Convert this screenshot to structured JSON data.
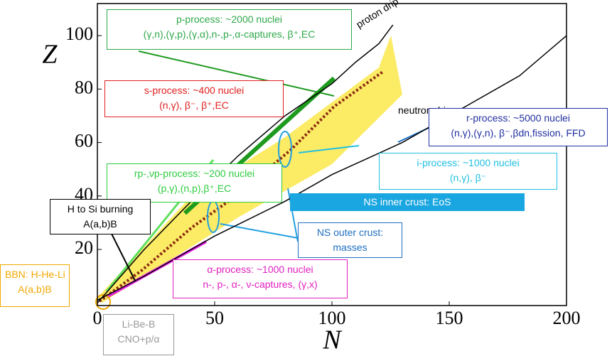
{
  "chart_data": {
    "type": "line",
    "x_label": "N",
    "y_label": "Z",
    "xlim": [
      0,
      200
    ],
    "ylim": [
      -1,
      112
    ],
    "xticks": [
      0,
      50,
      100,
      150,
      200
    ],
    "yticks": [
      20,
      40,
      60,
      80,
      100
    ],
    "series": [
      {
        "name": "proton drip",
        "color": "#000000",
        "x": [
          0,
          10,
          20,
          40,
          60,
          80,
          100,
          110,
          120,
          126
        ],
        "y": [
          0,
          10,
          20,
          38,
          55,
          70,
          82,
          90,
          97,
          104
        ]
      },
      {
        "name": "neutron drip",
        "color": "#000000",
        "x": [
          0,
          20,
          50,
          80,
          100,
          130,
          160,
          180,
          200
        ],
        "y": [
          1,
          10,
          25,
          38,
          48,
          60,
          75,
          85,
          100
        ]
      }
    ],
    "annotations": [
      {
        "lines": [
          "p-process: ~2000 nuclei",
          "(γ,n),(γ,p),(γ,α),n-,p-,α-captures, β⁺,EC"
        ],
        "color": "#2ea84a"
      },
      {
        "lines": [
          "s-process: ~400 nuclei",
          "(n,γ), β⁻, β⁺,EC"
        ],
        "color": "#e02020"
      },
      {
        "lines": [
          "r-process: ~5000 nuclei",
          "(n,γ),(γ,n), β⁻,βdn,fission, FFD"
        ],
        "color": "#1f2fa0"
      },
      {
        "lines": [
          "i-process: ~1000 nuclei",
          "(n,γ), β⁻"
        ],
        "color": "#22c0e0"
      },
      {
        "lines": [
          "rp-,νp-process: ~200 nuclei",
          "(p,γ),(n,p),β⁺,EC"
        ],
        "color": "#2ecc40"
      },
      {
        "lines": [
          "NS inner crust: EoS"
        ],
        "color": "#1aa6e0"
      },
      {
        "lines": [
          "H to Si burning",
          "A(a,b)B"
        ],
        "color": "#000000"
      },
      {
        "lines": [
          "NS outer crust:",
          "masses"
        ],
        "color": "#1f6fc0"
      },
      {
        "lines": [
          "α-process: ~1000 nuclei",
          "n-, p-, α-, ν-captures, (γ,x)"
        ],
        "color": "#e020c0"
      },
      {
        "lines": [
          "BBN: H-He-Li",
          "A(a,b)B"
        ],
        "color": "#f0a800"
      },
      {
        "lines": [
          "Li-Be-B",
          "CNO+p/α"
        ],
        "color": "#999999"
      }
    ]
  }
}
